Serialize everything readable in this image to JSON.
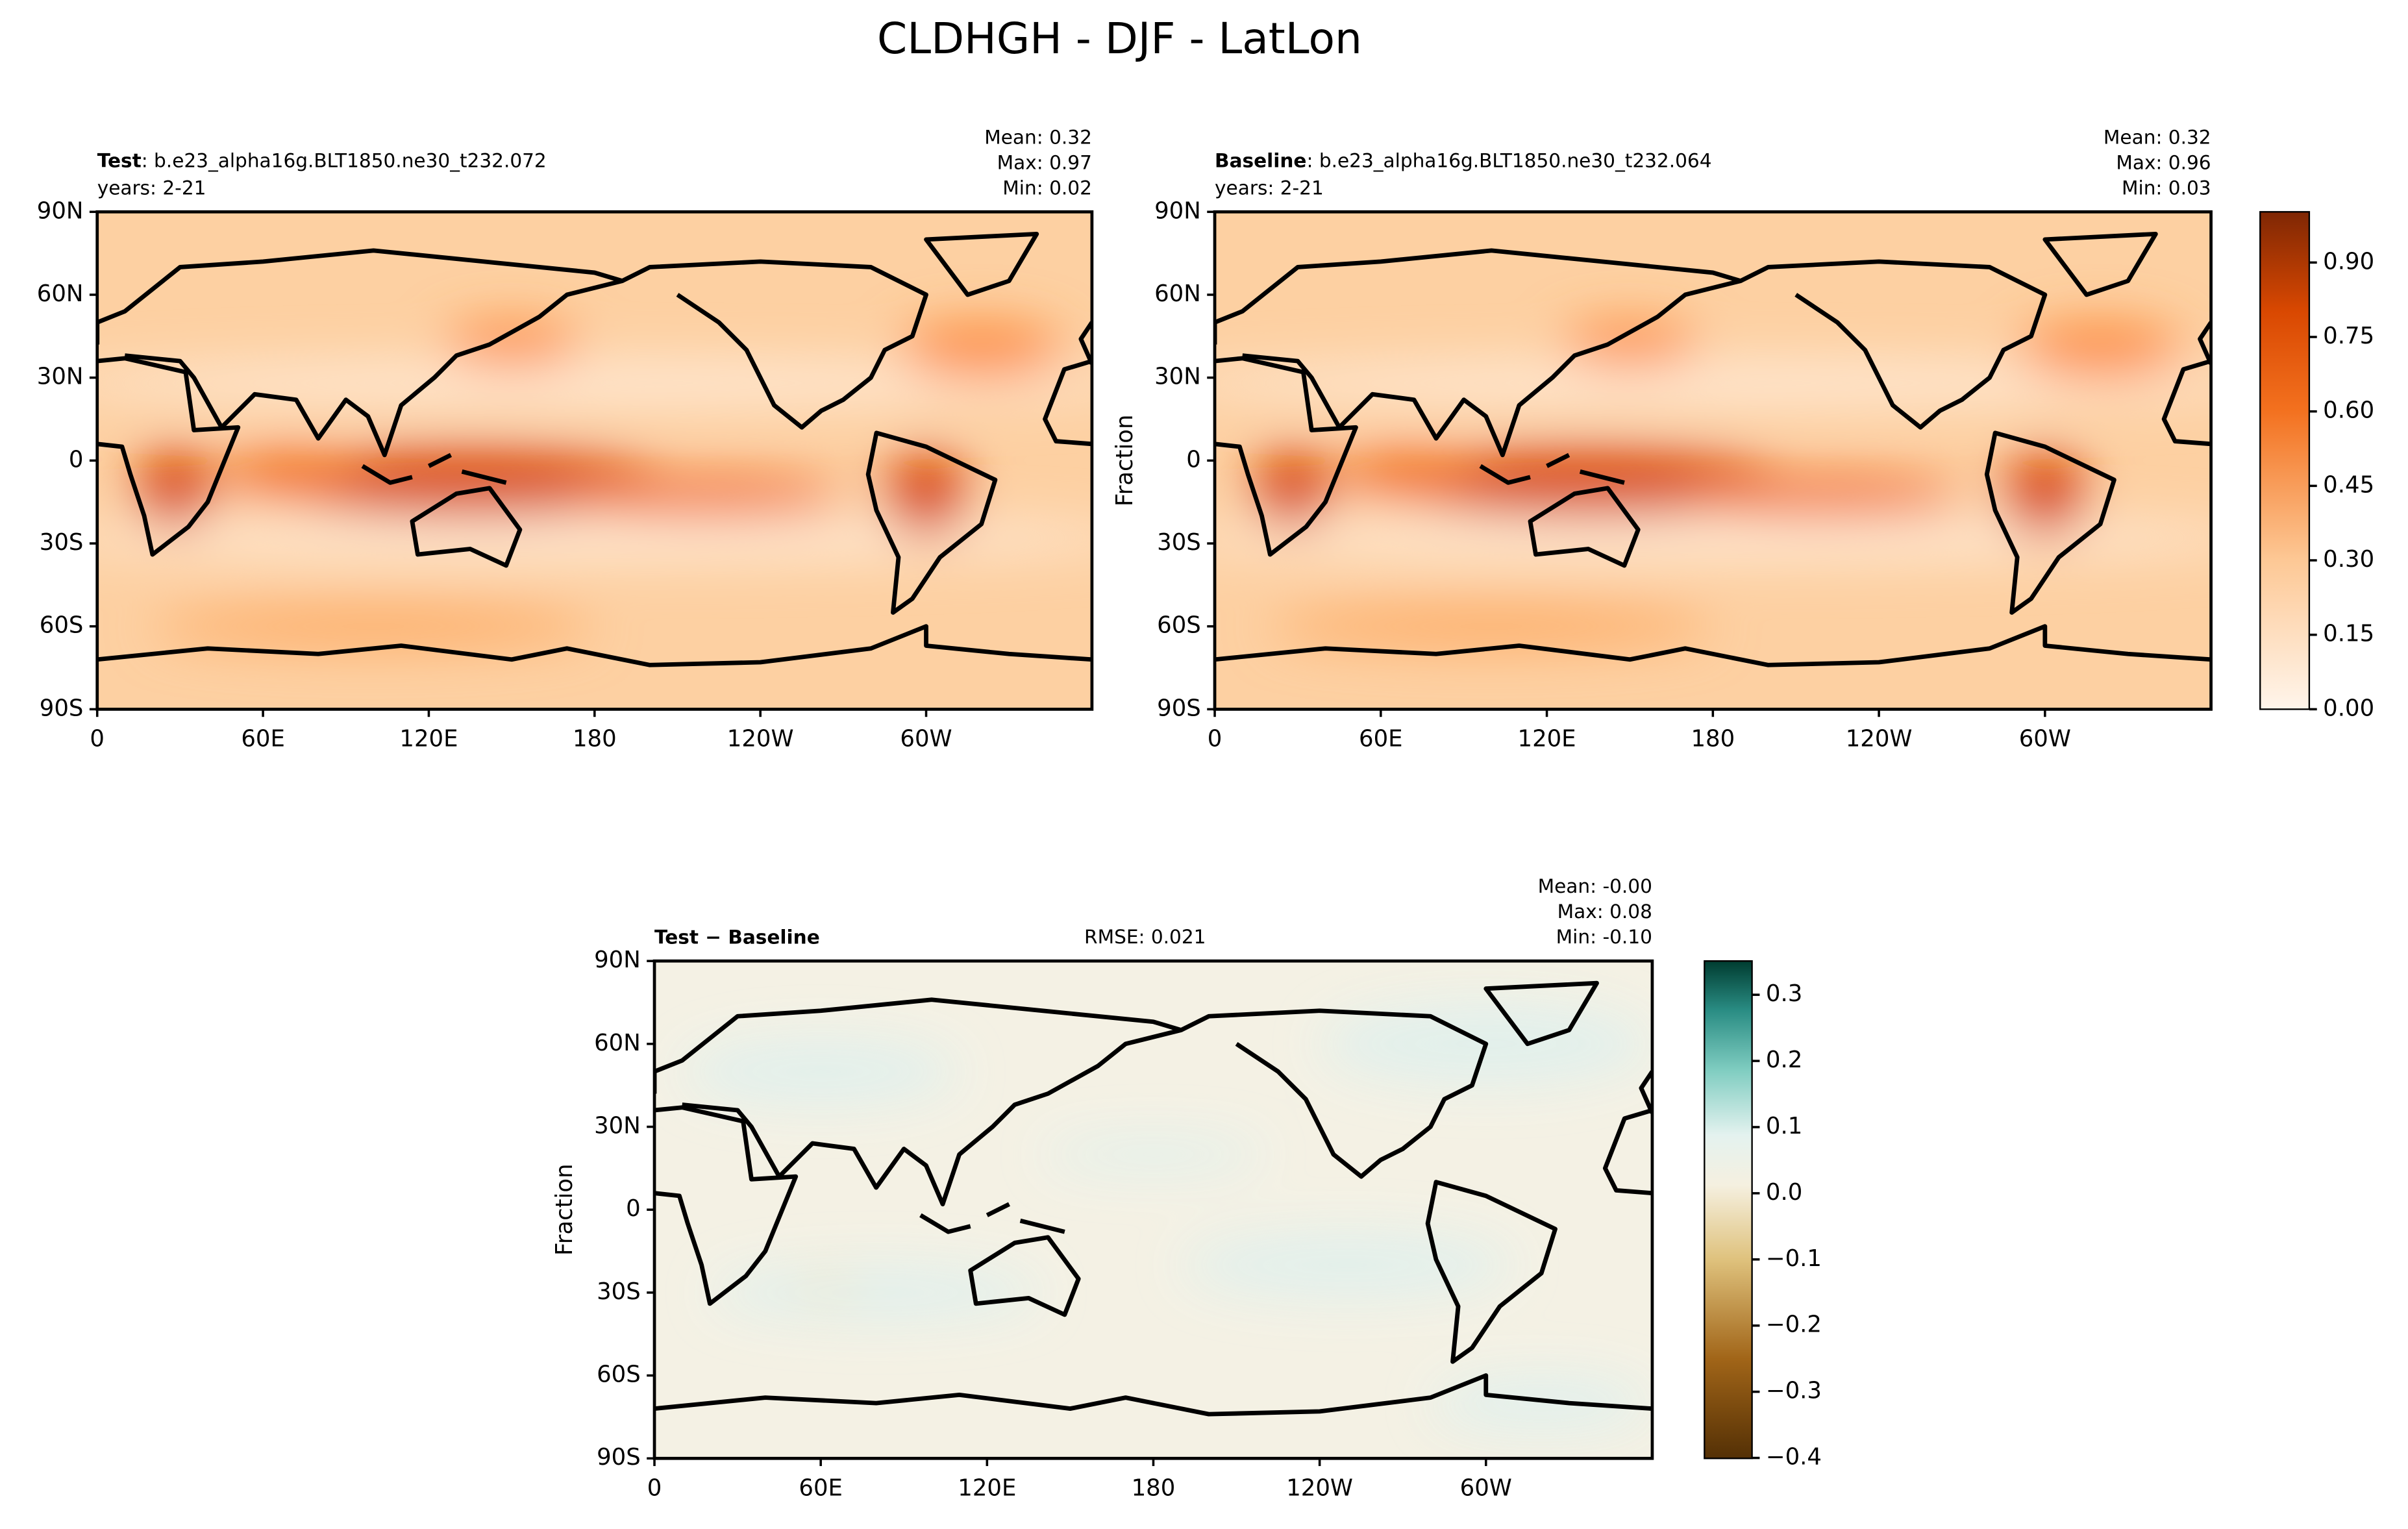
{
  "title": "CLDHGH - DJF - LatLon",
  "panels": [
    {
      "label": "Test",
      "case": ": b.e23_alpha16g.BLT1850.ne30_t232.072",
      "years": "years: 2-21",
      "stats": [
        "Mean:  0.32",
        "Max:  0.97",
        "Min:  0.02"
      ]
    },
    {
      "label": "Baseline",
      "case": ": b.e23_alpha16g.BLT1850.ne30_t232.064",
      "years": "years: 2-21",
      "stats": [
        "Mean:  0.32",
        "Max:  0.96",
        "Min:  0.03"
      ],
      "ylabel": "Fraction"
    },
    {
      "label": "Test − Baseline",
      "rmse": "RMSE: 0.021",
      "stats": [
        "Mean: -0.00",
        "Max:  0.08",
        "Min: -0.10"
      ],
      "ylabel": "Fraction"
    }
  ],
  "lat_ticks": [
    "90N",
    "60N",
    "30N",
    "0",
    "30S",
    "60S",
    "90S"
  ],
  "lon_ticks": [
    "0",
    "60E",
    "120E",
    "180",
    "120W",
    "60W"
  ],
  "colorbars": [
    {
      "ticks": [
        "0.90",
        "0.75",
        "0.60",
        "0.45",
        "0.30",
        "0.15",
        "0.00"
      ]
    },
    {
      "ticks": [
        "0.3",
        "0.2",
        "0.1",
        "0.0",
        "−0.1",
        "−0.2",
        "−0.3",
        "−0.4"
      ]
    }
  ]
}
